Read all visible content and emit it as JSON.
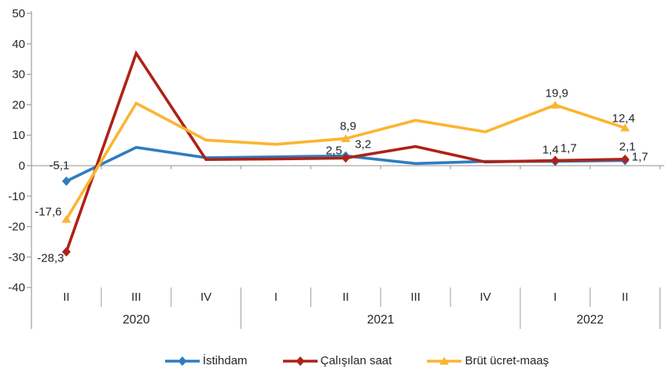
{
  "chart_data": {
    "type": "line",
    "title": "",
    "xlabel": "",
    "ylabel": "",
    "x_categories_quarters": [
      "II",
      "III",
      "IV",
      "I",
      "II",
      "III",
      "IV",
      "I",
      "II"
    ],
    "year_groups": [
      {
        "label": "2020",
        "span": 3
      },
      {
        "label": "2021",
        "span": 4
      },
      {
        "label": "2022",
        "span": 2
      }
    ],
    "y_ticks": [
      "50",
      "40",
      "30",
      "20",
      "10",
      "0",
      "-10",
      "-20",
      "-30",
      "-40"
    ],
    "ylim": [
      -40,
      50
    ],
    "grid": "off",
    "legend_position": "bottom-center",
    "decimal_separator": ",",
    "axis_color": "#A6A6A6",
    "label_color": "#262626",
    "series": [
      {
        "name": "İstihdam",
        "color": "#2E7DBF",
        "marker": "diamond",
        "values": [
          -5.1,
          6.0,
          2.6,
          2.9,
          3.2,
          0.7,
          1.4,
          1.4,
          1.7
        ],
        "value_labels": {
          "0": "-5,1",
          "4": "3,2",
          "7": "1,4",
          "8": "1,7"
        }
      },
      {
        "name": "Çalışılan saat",
        "color": "#AE2217",
        "marker": "diamond",
        "values": [
          -28.3,
          36.9,
          2.0,
          2.2,
          2.5,
          6.3,
          1.2,
          1.7,
          2.1
        ],
        "value_labels": {
          "0": "-28,3",
          "4": "2,5",
          "7": "1,7",
          "8": "2,1"
        }
      },
      {
        "name": "Brüt ücret-maaş",
        "color": "#FBB531",
        "marker": "triangle",
        "values": [
          -17.6,
          20.5,
          8.4,
          7.0,
          8.9,
          14.9,
          11.1,
          19.9,
          12.4
        ],
        "value_labels": {
          "0": "-17,6",
          "4": "8,9",
          "7": "19,9",
          "8": "12,4"
        }
      }
    ]
  }
}
